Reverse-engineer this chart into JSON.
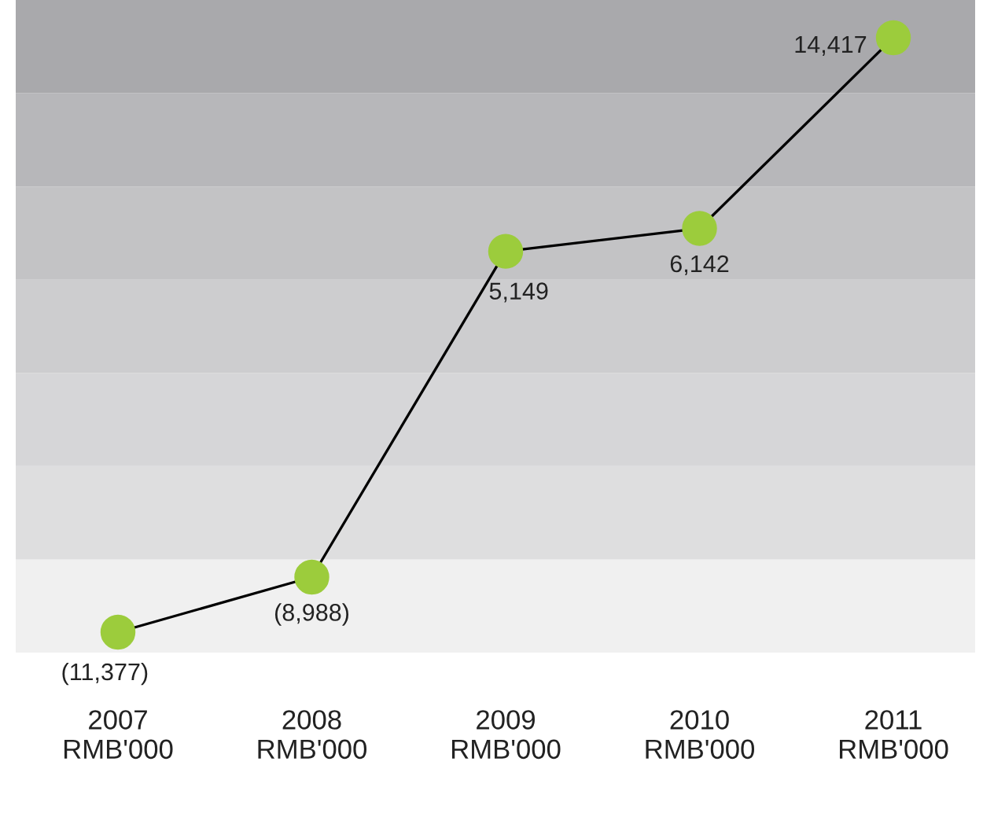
{
  "chart_data": {
    "type": "line",
    "categories": [
      "2007\nRMB'000",
      "2008\nRMB'000",
      "2009\nRMB'000",
      "2010\nRMB'000",
      "2011\nRMB'000"
    ],
    "series": [
      {
        "color": "#9ccc3c",
        "values": [
          -11377,
          -8988,
          5149,
          6142,
          14417
        ],
        "value_labels": [
          "(11,377)",
          "(8,988)",
          "5,149",
          "6,142",
          "14,417"
        ]
      }
    ],
    "marker": "circle",
    "line_style": "solid"
  }
}
